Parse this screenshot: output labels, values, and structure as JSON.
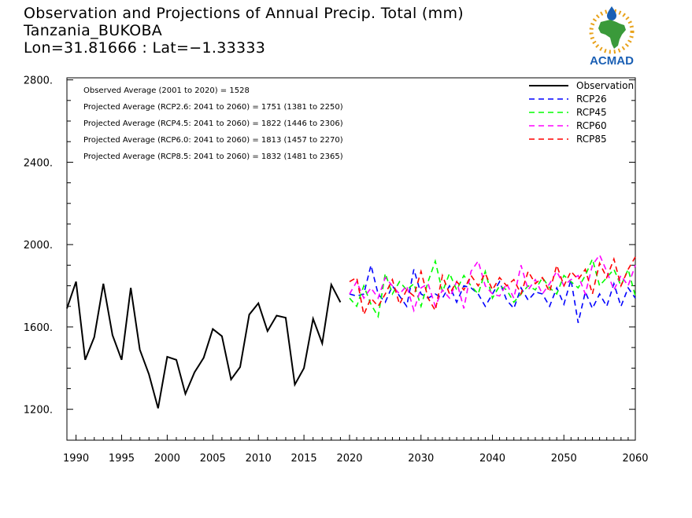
{
  "header": {
    "title": "Observation and Projections of Annual Precip. Total (mm)",
    "location": "Tanzania_BUKOBA",
    "coords": "Lon=31.81666 : Lat=−1.33333"
  },
  "logo": {
    "text": "ACMAD",
    "brand_color": "#1a5fb4",
    "accent_color": "#e8a21a",
    "africa_color": "#3a9a3a"
  },
  "stats": [
    "Observed Average (2001 to 2020) = 1528",
    "Projected Average (RCP2.6: 2041 to 2060) = 1751 (1381 to 2250)",
    "Projected Average (RCP4.5: 2041 to 2060) = 1822 (1446 to 2306)",
    "Projected Average (RCP6.0: 2041 to 2060) = 1813 (1457 to 2270)",
    "Projected Average (RCP8.5: 2041 to 2060) = 1832 (1481 to 2365)"
  ],
  "chart_data": {
    "type": "line",
    "title": "Observation and Projections of Annual Precip. Total (mm)",
    "xlabel": "",
    "ylabel": "",
    "ylim": [
      1050,
      2810
    ],
    "y_ticks": [
      "1200.",
      "1600.",
      "2000.",
      "2400.",
      "2800."
    ],
    "y_tick_values": [
      1200,
      1600,
      2000,
      2400,
      2800
    ],
    "x_ticks_left": [
      "1990",
      "1995",
      "2000",
      "2005",
      "2010",
      "2015",
      "2020"
    ],
    "x_ticks_right": [
      "2030",
      "2040",
      "2050",
      "2060"
    ],
    "grid": false,
    "legend_position": "top-right",
    "series": [
      {
        "name": "Observation",
        "color": "#000000",
        "dash": "solid",
        "x": [
          1989,
          1990,
          1991,
          1992,
          1993,
          1994,
          1995,
          1996,
          1997,
          1998,
          1999,
          2000,
          2001,
          2002,
          2003,
          2004,
          2005,
          2006,
          2007,
          2008,
          2009,
          2010,
          2011,
          2012,
          2013,
          2014,
          2015,
          2016,
          2017,
          2018,
          2019
        ],
        "values": [
          1690,
          1820,
          1440,
          1550,
          1810,
          1560,
          1440,
          1790,
          1490,
          1370,
          1205,
          1455,
          1440,
          1275,
          1380,
          1450,
          1590,
          1555,
          1345,
          1405,
          1660,
          1715,
          1580,
          1655,
          1645,
          1320,
          1400,
          1640,
          1520,
          1805,
          1720
        ]
      },
      {
        "name": "RCP26",
        "color": "#0000ff",
        "dash": "dashed",
        "x": [
          2020,
          2021,
          2022,
          2023,
          2024,
          2025,
          2026,
          2027,
          2028,
          2029,
          2030,
          2031,
          2032,
          2033,
          2034,
          2035,
          2036,
          2037,
          2038,
          2039,
          2040,
          2041,
          2042,
          2043,
          2044,
          2045,
          2046,
          2047,
          2048,
          2049,
          2050,
          2051,
          2052,
          2053,
          2054,
          2055,
          2056,
          2057,
          2058,
          2059,
          2060
        ],
        "values": [
          1760,
          1750,
          1760,
          1900,
          1760,
          1720,
          1800,
          1750,
          1700,
          1880,
          1760,
          1740,
          1760,
          1740,
          1800,
          1720,
          1800,
          1790,
          1760,
          1700,
          1760,
          1820,
          1730,
          1690,
          1790,
          1730,
          1770,
          1760,
          1700,
          1790,
          1710,
          1830,
          1620,
          1770,
          1690,
          1760,
          1700,
          1810,
          1700,
          1790,
          1740
        ]
      },
      {
        "name": "RCP45",
        "color": "#00ff00",
        "dash": "dashed",
        "x": [
          2020,
          2021,
          2022,
          2023,
          2024,
          2025,
          2026,
          2027,
          2028,
          2029,
          2030,
          2031,
          2032,
          2033,
          2034,
          2035,
          2036,
          2037,
          2038,
          2039,
          2040,
          2041,
          2042,
          2043,
          2044,
          2045,
          2046,
          2047,
          2048,
          2049,
          2050,
          2051,
          2052,
          2053,
          2054,
          2055,
          2056,
          2057,
          2058,
          2059,
          2060
        ],
        "values": [
          1740,
          1700,
          1800,
          1710,
          1650,
          1860,
          1760,
          1820,
          1780,
          1810,
          1700,
          1820,
          1920,
          1770,
          1860,
          1780,
          1850,
          1800,
          1760,
          1870,
          1740,
          1800,
          1780,
          1720,
          1760,
          1800,
          1780,
          1840,
          1790,
          1760,
          1850,
          1820,
          1790,
          1850,
          1930,
          1800,
          1840,
          1880,
          1800,
          1880,
          1750
        ]
      },
      {
        "name": "RCP60",
        "color": "#ff00ff",
        "dash": "dashed",
        "x": [
          2020,
          2021,
          2022,
          2023,
          2024,
          2025,
          2026,
          2027,
          2028,
          2029,
          2030,
          2031,
          2032,
          2033,
          2034,
          2035,
          2036,
          2037,
          2038,
          2039,
          2040,
          2041,
          2042,
          2043,
          2044,
          2045,
          2046,
          2047,
          2048,
          2049,
          2050,
          2051,
          2052,
          2053,
          2054,
          2055,
          2056,
          2057,
          2058,
          2059,
          2060
        ],
        "values": [
          1760,
          1820,
          1740,
          1790,
          1740,
          1840,
          1800,
          1760,
          1800,
          1680,
          1790,
          1810,
          1700,
          1780,
          1740,
          1820,
          1690,
          1870,
          1920,
          1800,
          1760,
          1750,
          1810,
          1740,
          1900,
          1780,
          1830,
          1760,
          1810,
          1870,
          1800,
          1830,
          1850,
          1760,
          1900,
          1950,
          1870,
          1780,
          1850,
          1800,
          1900
        ]
      },
      {
        "name": "RCP85",
        "color": "#ff0000",
        "dash": "dashed",
        "x": [
          2020,
          2021,
          2022,
          2023,
          2024,
          2025,
          2026,
          2027,
          2028,
          2029,
          2030,
          2031,
          2032,
          2033,
          2034,
          2035,
          2036,
          2037,
          2038,
          2039,
          2040,
          2041,
          2042,
          2043,
          2044,
          2045,
          2046,
          2047,
          2048,
          2049,
          2050,
          2051,
          2052,
          2053,
          2054,
          2055,
          2056,
          2057,
          2058,
          2059,
          2060
        ],
        "values": [
          1820,
          1840,
          1660,
          1740,
          1700,
          1760,
          1830,
          1710,
          1780,
          1750,
          1870,
          1740,
          1680,
          1850,
          1760,
          1820,
          1780,
          1850,
          1800,
          1860,
          1780,
          1840,
          1800,
          1830,
          1760,
          1870,
          1810,
          1840,
          1770,
          1900,
          1800,
          1870,
          1830,
          1880,
          1760,
          1910,
          1840,
          1930,
          1800,
          1880,
          1940
        ]
      }
    ]
  }
}
